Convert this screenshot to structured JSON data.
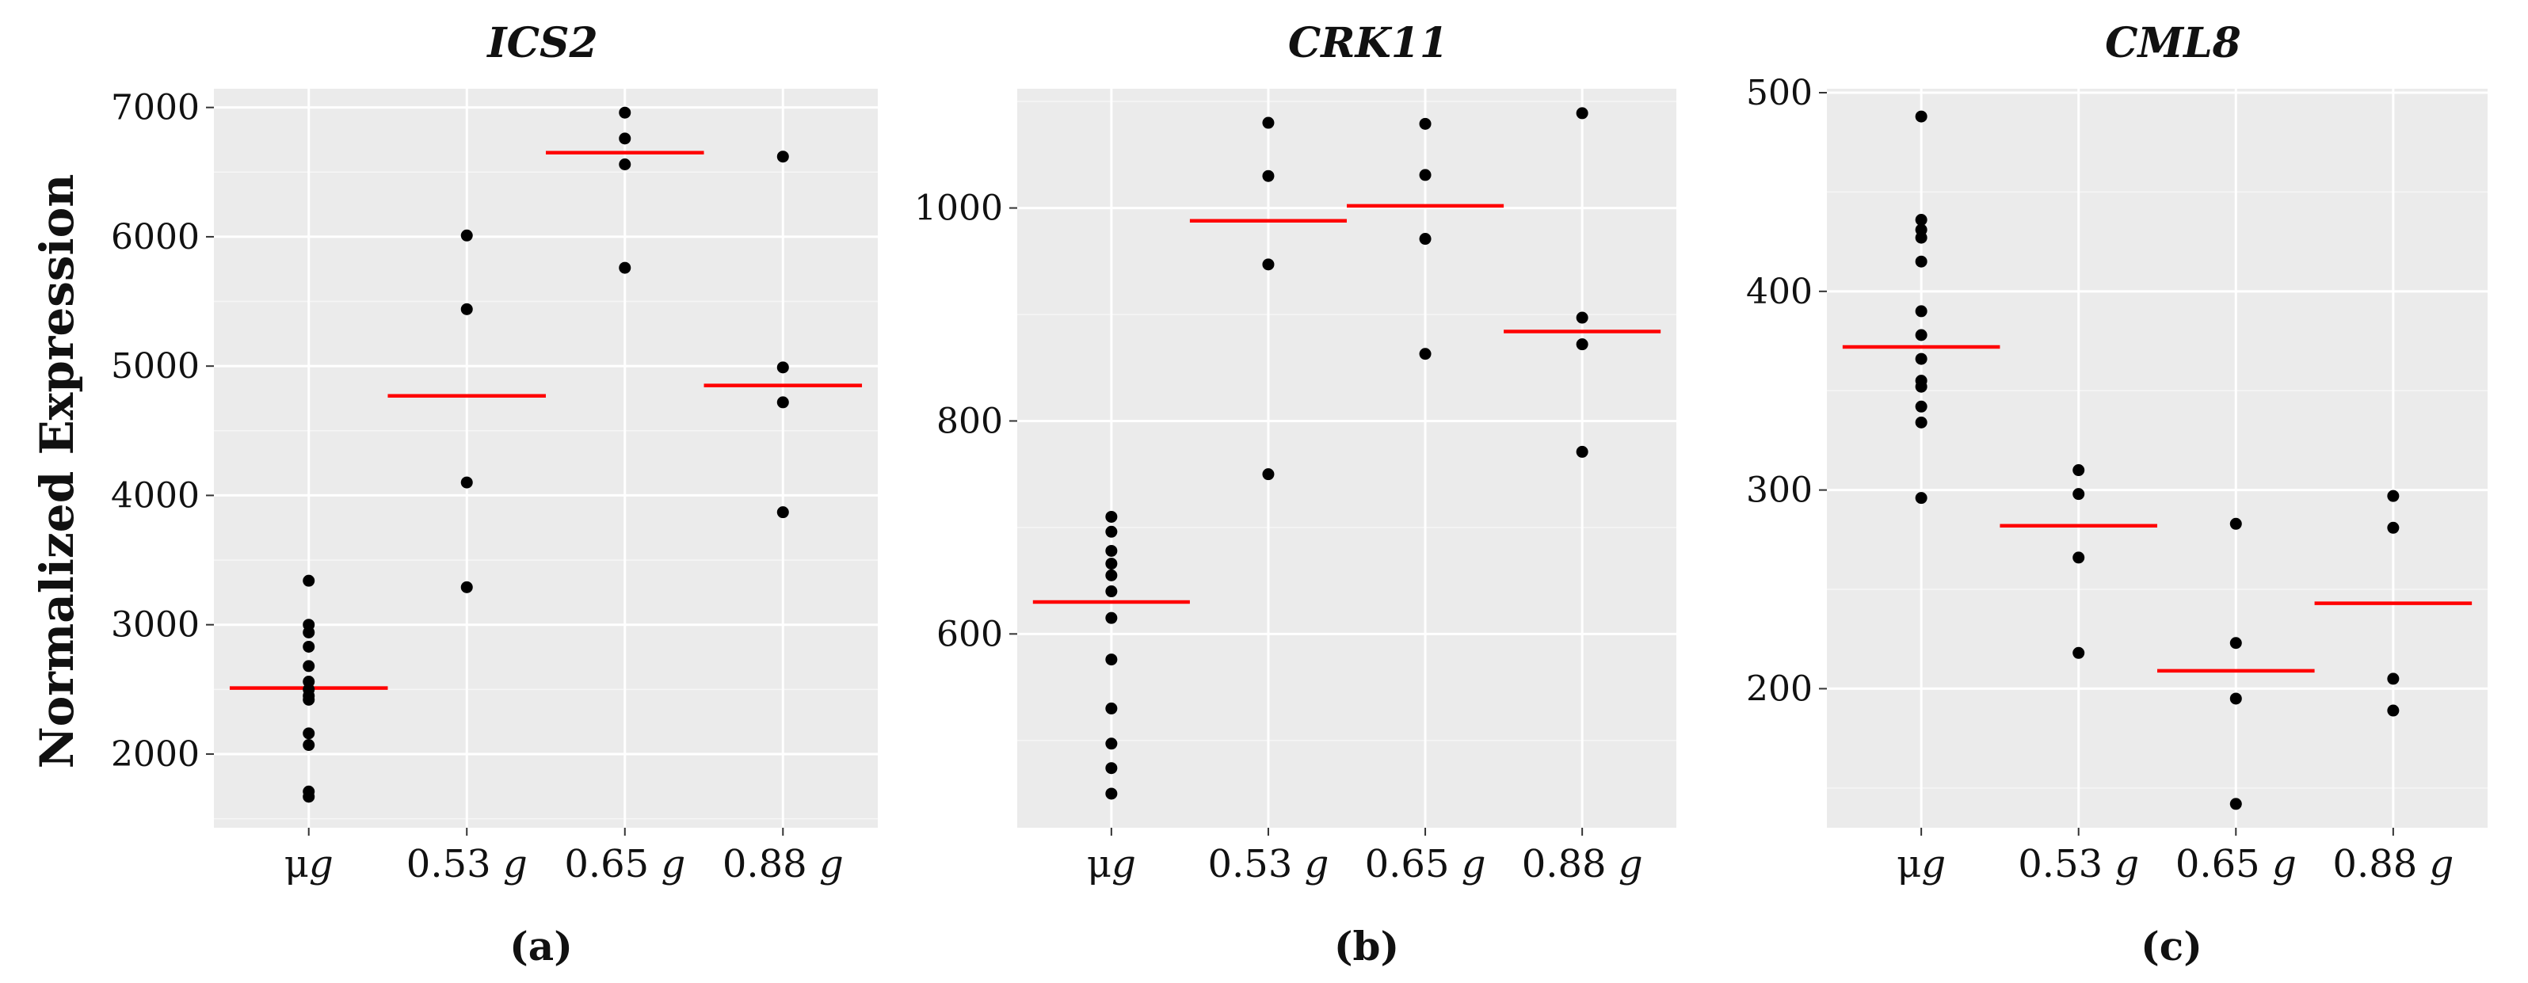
{
  "figure": {
    "y_axis_title": "Normalized Expression"
  },
  "colors": {
    "panel_background": "#ebebeb",
    "mean_line": "#ff0000",
    "point": "#000000"
  },
  "chart_data": [
    {
      "type": "scatter",
      "title": "ICS2",
      "panel_label": "(a)",
      "ylabel": "Normalized Expression",
      "xlabel": "",
      "categories": [
        {
          "prefix": "μ",
          "unit": "g"
        },
        {
          "prefix": "0.53 ",
          "unit": "g"
        },
        {
          "prefix": "0.65 ",
          "unit": "g"
        },
        {
          "prefix": "0.88 ",
          "unit": "g"
        }
      ],
      "ylim": [
        1430,
        7145
      ],
      "yticks": [
        2000,
        3000,
        4000,
        5000,
        6000,
        7000
      ],
      "grid": true,
      "groups": [
        {
          "values": [
            3340,
            3000,
            2940,
            2830,
            2680,
            2560,
            2500,
            2450,
            2420,
            2160,
            2070,
            1710,
            1670
          ],
          "mean": 2510
        },
        {
          "values": [
            6010,
            5440,
            4100,
            3290
          ],
          "mean": 4770
        },
        {
          "values": [
            6960,
            6760,
            6560,
            5760
          ],
          "mean": 6650
        },
        {
          "values": [
            6620,
            4990,
            4720,
            3870
          ],
          "mean": 4850
        }
      ]
    },
    {
      "type": "scatter",
      "title": "CRK11",
      "panel_label": "(b)",
      "ylabel": "",
      "xlabel": "",
      "categories": [
        {
          "prefix": "μ",
          "unit": "g"
        },
        {
          "prefix": "0.53 ",
          "unit": "g"
        },
        {
          "prefix": "0.65 ",
          "unit": "g"
        },
        {
          "prefix": "0.88 ",
          "unit": "g"
        }
      ],
      "ylim": [
        418,
        1112
      ],
      "yticks": [
        600,
        800,
        1000
      ],
      "grid": true,
      "groups": [
        {
          "values": [
            710,
            696,
            678,
            666,
            655,
            640,
            615,
            576,
            530,
            497,
            474,
            450
          ],
          "mean": 630
        },
        {
          "values": [
            1080,
            1030,
            947,
            750
          ],
          "mean": 988
        },
        {
          "values": [
            1079,
            1031,
            971,
            863
          ],
          "mean": 1002
        },
        {
          "values": [
            1089,
            897,
            872,
            771
          ],
          "mean": 884
        }
      ]
    },
    {
      "type": "scatter",
      "title": "CML8",
      "panel_label": "(c)",
      "ylabel": "",
      "xlabel": "",
      "categories": [
        {
          "prefix": "μ",
          "unit": "g"
        },
        {
          "prefix": "0.53 ",
          "unit": "g"
        },
        {
          "prefix": "0.65 ",
          "unit": "g"
        },
        {
          "prefix": "0.88 ",
          "unit": "g"
        }
      ],
      "ylim": [
        130,
        502
      ],
      "yticks": [
        200,
        300,
        400,
        500
      ],
      "grid": true,
      "groups": [
        {
          "values": [
            488,
            436,
            431,
            427,
            415,
            390,
            378,
            366,
            355,
            352,
            342,
            334,
            296
          ],
          "mean": 372
        },
        {
          "values": [
            310,
            298,
            266,
            218
          ],
          "mean": 282
        },
        {
          "values": [
            283,
            223,
            195,
            142
          ],
          "mean": 209
        },
        {
          "values": [
            297,
            281,
            205,
            189
          ],
          "mean": 243
        }
      ]
    }
  ]
}
